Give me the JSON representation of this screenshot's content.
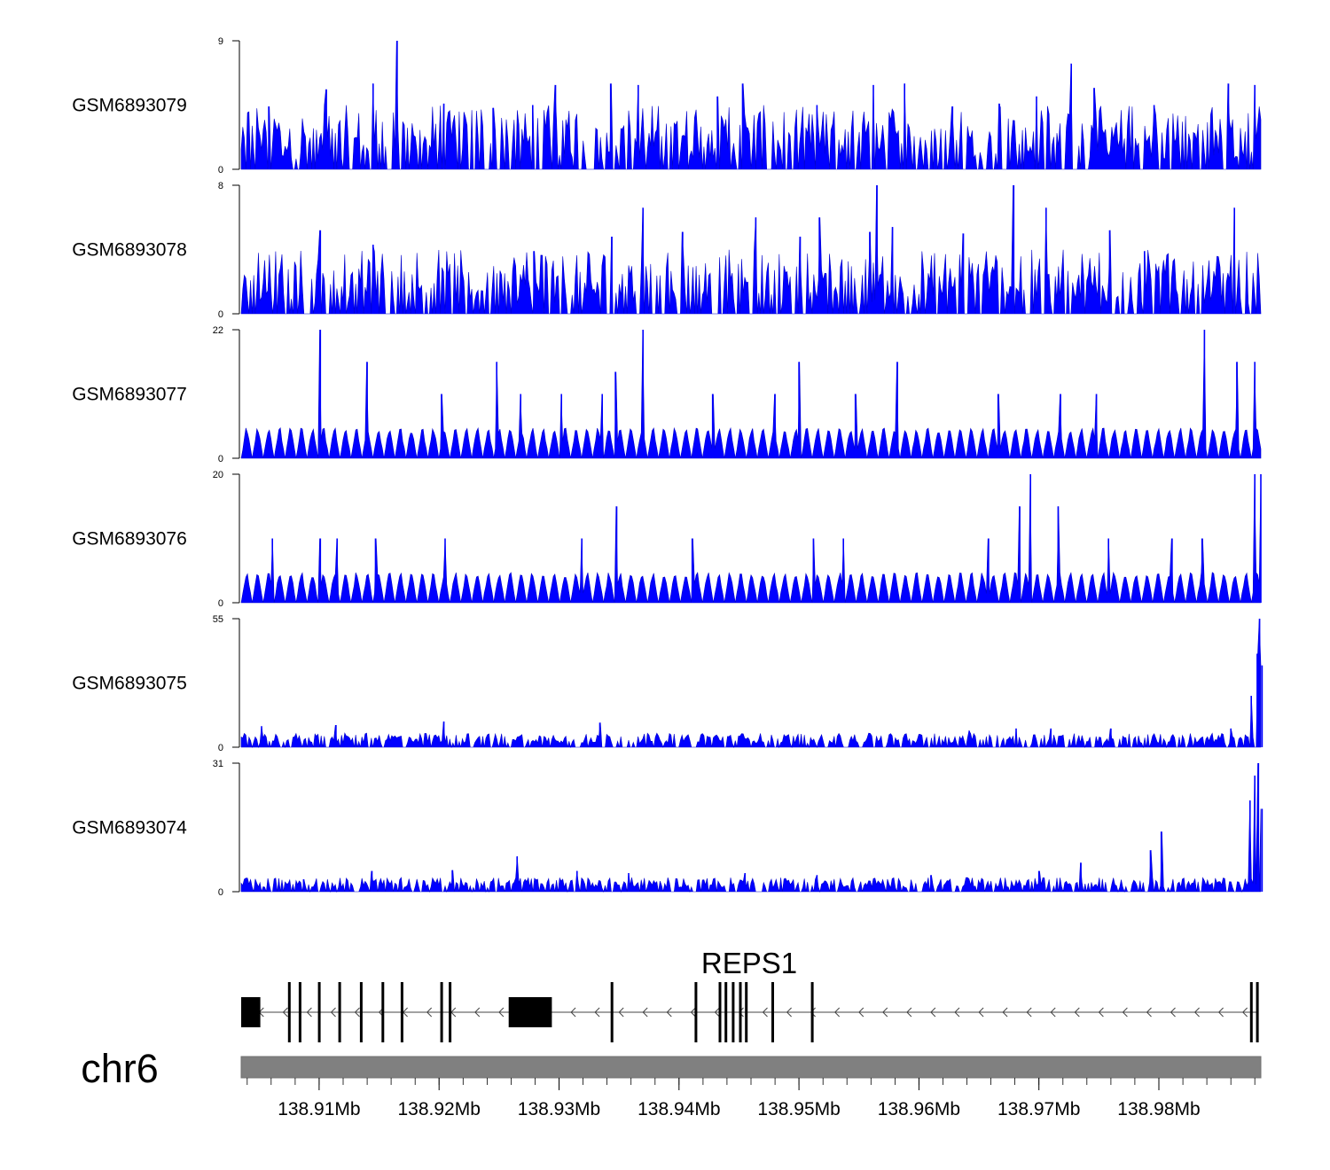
{
  "chart_data": {
    "type": "area",
    "title": "",
    "chromosome": "chr6",
    "region_mb": [
      138.9035,
      138.9885
    ],
    "fill_color": "#0000ff",
    "baseline_tick": "0",
    "tracks": [
      {
        "name": "GSM6893079",
        "max_label": "9",
        "ymax": 9,
        "peaks": [
          [
            138.9058,
            4.4
          ],
          [
            138.9106,
            5.6
          ],
          [
            138.9145,
            6.0
          ],
          [
            138.9165,
            9.0
          ],
          [
            138.9204,
            4.6
          ],
          [
            138.9245,
            4.3
          ],
          [
            138.9278,
            4.5
          ],
          [
            138.9297,
            5.9
          ],
          [
            138.9343,
            6.0
          ],
          [
            138.9366,
            5.9
          ],
          [
            138.9432,
            5.1
          ],
          [
            138.9453,
            6.0
          ],
          [
            138.9515,
            4.5
          ],
          [
            138.9562,
            5.9
          ],
          [
            138.9588,
            6.0
          ],
          [
            138.9628,
            4.4
          ],
          [
            138.9667,
            4.6
          ],
          [
            138.9698,
            5.1
          ],
          [
            138.9727,
            7.4
          ],
          [
            138.9746,
            5.7
          ],
          [
            138.9796,
            4.5
          ],
          [
            138.9858,
            6.0
          ],
          [
            138.988,
            5.9
          ]
        ]
      },
      {
        "name": "GSM6893078",
        "max_label": "8",
        "ymax": 8,
        "peaks": [
          [
            138.9101,
            5.2
          ],
          [
            138.9145,
            4.3
          ],
          [
            138.9279,
            3.9
          ],
          [
            138.9344,
            4.8
          ],
          [
            138.937,
            6.6
          ],
          [
            138.9403,
            5.1
          ],
          [
            138.9464,
            6.0
          ],
          [
            138.9501,
            4.8
          ],
          [
            138.9517,
            6.0
          ],
          [
            138.9559,
            5.1
          ],
          [
            138.9565,
            8.0
          ],
          [
            138.9578,
            5.4
          ],
          [
            138.9637,
            5.0
          ],
          [
            138.9679,
            8.0
          ],
          [
            138.9706,
            6.6
          ],
          [
            138.9759,
            5.2
          ],
          [
            138.9788,
            3.9
          ],
          [
            138.9863,
            6.6
          ]
        ]
      },
      {
        "name": "GSM6893077",
        "max_label": "22",
        "ymax": 22,
        "peaks": [
          [
            138.9101,
            22.0
          ],
          [
            138.914,
            16.5
          ],
          [
            138.9202,
            11.0
          ],
          [
            138.9248,
            16.5
          ],
          [
            138.9268,
            11.0
          ],
          [
            138.9302,
            11.0
          ],
          [
            138.9336,
            11.0
          ],
          [
            138.9347,
            14.8
          ],
          [
            138.937,
            22.0
          ],
          [
            138.9428,
            11.0
          ],
          [
            138.948,
            11.0
          ],
          [
            138.95,
            16.5
          ],
          [
            138.9547,
            11.0
          ],
          [
            138.9582,
            16.5
          ],
          [
            138.9666,
            11.0
          ],
          [
            138.9718,
            11.0
          ],
          [
            138.9748,
            11.0
          ],
          [
            138.9838,
            22.0
          ],
          [
            138.9865,
            16.5
          ],
          [
            138.988,
            16.5
          ]
        ]
      },
      {
        "name": "GSM6893076",
        "max_label": "20",
        "ymax": 20,
        "peaks": [
          [
            138.9061,
            10.0
          ],
          [
            138.9101,
            10.0
          ],
          [
            138.9115,
            10.0
          ],
          [
            138.9147,
            10.0
          ],
          [
            138.9205,
            10.0
          ],
          [
            138.9319,
            10.0
          ],
          [
            138.9348,
            15.0
          ],
          [
            138.9411,
            10.0
          ],
          [
            138.9512,
            10.0
          ],
          [
            138.9537,
            10.0
          ],
          [
            138.9658,
            10.0
          ],
          [
            138.9684,
            15.0
          ],
          [
            138.9693,
            20.0
          ],
          [
            138.9716,
            15.0
          ],
          [
            138.9758,
            10.0
          ],
          [
            138.9811,
            10.0
          ],
          [
            138.9836,
            10.0
          ],
          [
            138.988,
            20.0
          ],
          [
            138.9885,
            20.0
          ]
        ]
      },
      {
        "name": "GSM6893075",
        "max_label": "55",
        "ymax": 55,
        "peaks": [
          [
            138.9052,
            9.0
          ],
          [
            138.9114,
            9.5
          ],
          [
            138.9204,
            11.0
          ],
          [
            138.9334,
            10.5
          ],
          [
            138.9642,
            7.0
          ],
          [
            138.9681,
            8.0
          ],
          [
            138.971,
            8.0
          ],
          [
            138.976,
            8.0
          ],
          [
            138.986,
            8.0
          ],
          [
            138.9877,
            22.0
          ],
          [
            138.9882,
            40.0
          ],
          [
            138.9884,
            55.0
          ],
          [
            138.9886,
            35.0
          ]
        ]
      },
      {
        "name": "GSM6893074",
        "max_label": "31",
        "ymax": 31,
        "peaks": [
          [
            138.9087,
            3.0
          ],
          [
            138.9144,
            5.0
          ],
          [
            138.9211,
            5.2
          ],
          [
            138.9265,
            8.5
          ],
          [
            138.9315,
            5.0
          ],
          [
            138.9358,
            4.5
          ],
          [
            138.9455,
            4.5
          ],
          [
            138.9515,
            4.0
          ],
          [
            138.961,
            4.0
          ],
          [
            138.97,
            5.0
          ],
          [
            138.9735,
            7.0
          ],
          [
            138.9793,
            10.0
          ],
          [
            138.9802,
            14.5
          ],
          [
            138.9876,
            22.0
          ],
          [
            138.988,
            28.0
          ],
          [
            138.9883,
            31.0
          ],
          [
            138.9886,
            20.0
          ]
        ]
      }
    ],
    "gene": {
      "name": "REPS1",
      "strand": "-",
      "start": 138.9035,
      "end": 138.9883,
      "exons": [
        [
          138.9035,
          138.9051,
          "coding"
        ],
        [
          138.9074,
          138.9075,
          "coding"
        ],
        [
          138.9083,
          138.9084,
          "coding"
        ],
        [
          138.9099,
          138.9101,
          "coding"
        ],
        [
          138.9116,
          138.9118,
          "coding"
        ],
        [
          138.9134,
          138.9136,
          "coding"
        ],
        [
          138.9152,
          138.9153,
          "coding"
        ],
        [
          138.9168,
          138.9169,
          "coding"
        ],
        [
          138.9201,
          138.9202,
          "coding"
        ],
        [
          138.9208,
          138.9209,
          "coding"
        ],
        [
          138.9258,
          138.9294,
          "coding"
        ],
        [
          138.9343,
          138.9344,
          "coding"
        ],
        [
          138.9413,
          138.9415,
          "coding"
        ],
        [
          138.9433,
          138.9434,
          "coding"
        ],
        [
          138.9438,
          138.9439,
          "coding"
        ],
        [
          138.9444,
          138.9445,
          "coding"
        ],
        [
          138.945,
          138.9451,
          "coding"
        ],
        [
          138.9455,
          138.9457,
          "coding"
        ],
        [
          138.9477,
          138.9479,
          "coding"
        ],
        [
          138.951,
          138.9511,
          "coding"
        ],
        [
          138.9881,
          138.9883,
          "coding"
        ],
        [
          138.9876,
          138.9877,
          "coding"
        ]
      ]
    },
    "x_axis": {
      "major_ticks": [
        138.91,
        138.92,
        138.93,
        138.94,
        138.95,
        138.96,
        138.97,
        138.98
      ],
      "tick_labels": [
        "138.91Mb",
        "138.92Mb",
        "138.93Mb",
        "138.94Mb",
        "138.95Mb",
        "138.96Mb",
        "138.97Mb",
        "138.98Mb"
      ],
      "minor_step": 0.002
    }
  }
}
